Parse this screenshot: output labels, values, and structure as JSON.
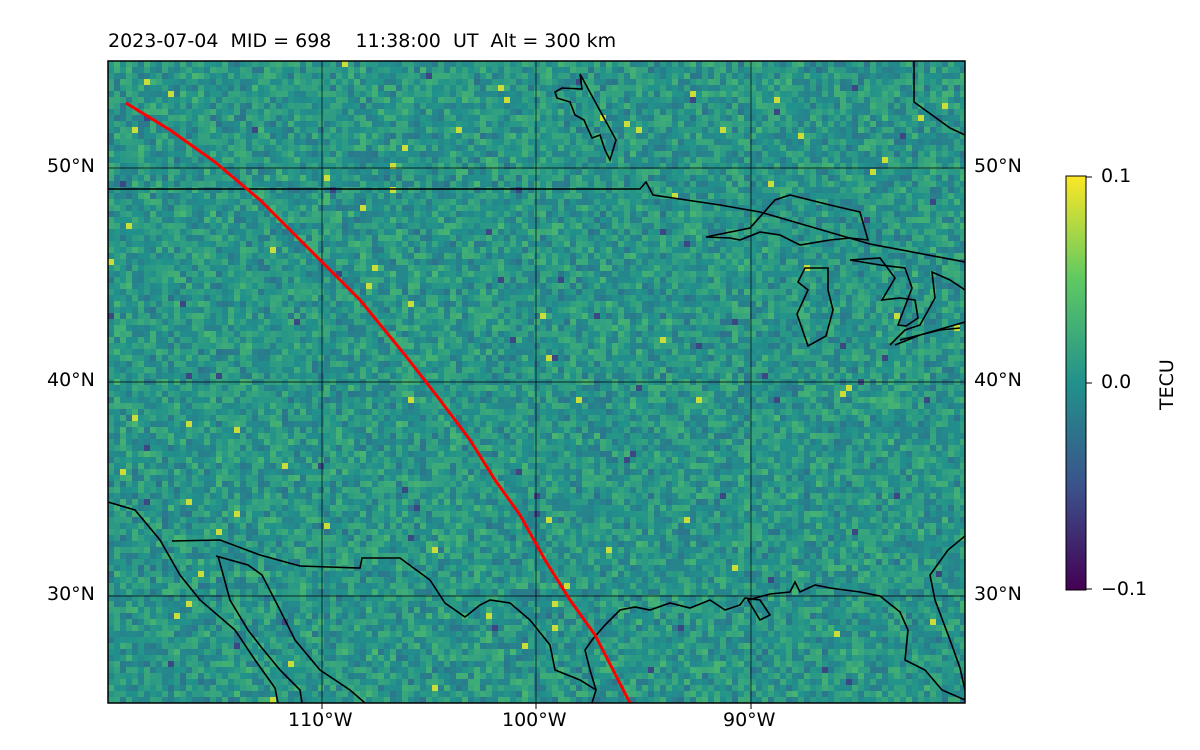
{
  "title": "2023-07-04  MID = 698    11:38:00  UT  Alt = 300 km",
  "map": {
    "lon_range": [
      -120,
      -80
    ],
    "lat_range": [
      25,
      55
    ],
    "lat_labels": [
      "50°N",
      "40°N",
      "30°N"
    ],
    "lon_labels": [
      "110°W",
      "100°W",
      "90°W"
    ],
    "track_color": "#ff0000"
  },
  "colorbar": {
    "label": "TECU",
    "ticks": [
      "0.1",
      "0.0",
      "−0.1"
    ],
    "range": [
      -0.1,
      0.1
    ],
    "colormap": "viridis"
  }
}
